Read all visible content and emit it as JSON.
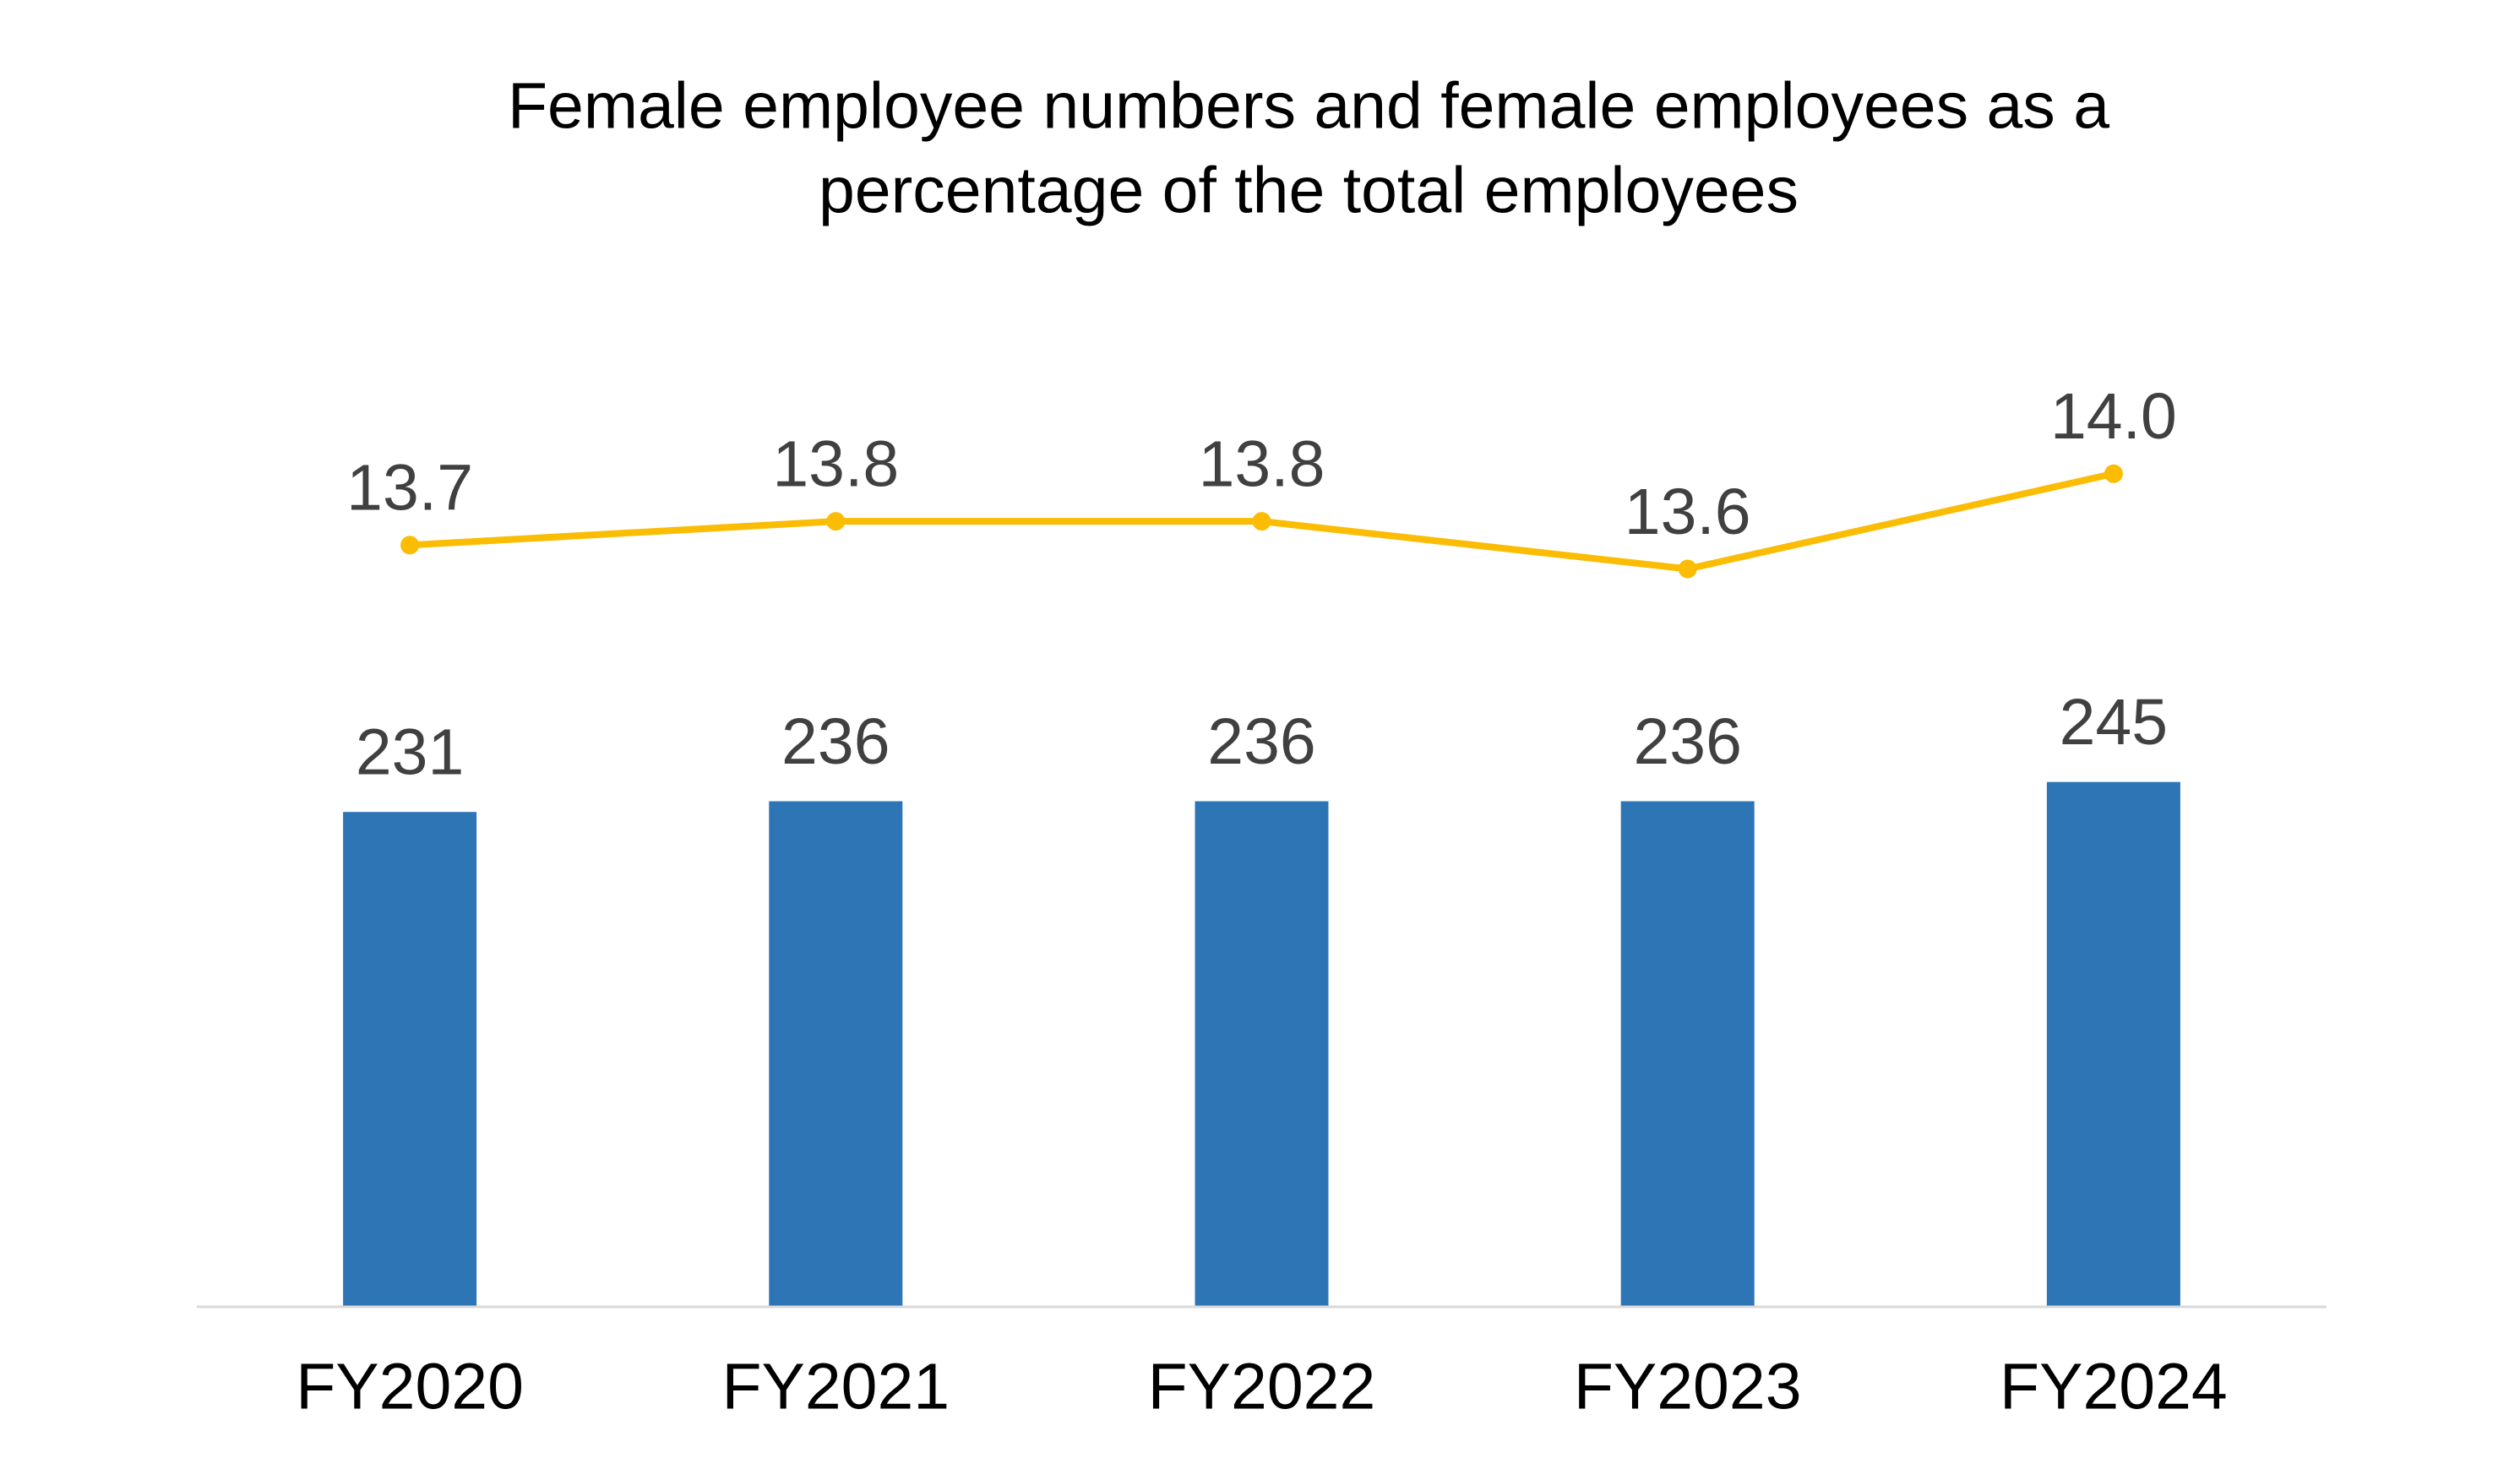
{
  "chart_data": {
    "type": "combo",
    "title": [
      "Female employee numbers and female employees as a",
      "percentage of the total employees"
    ],
    "categories": [
      "FY2020",
      "FY2021",
      "FY2022",
      "FY2023",
      "FY2024"
    ],
    "series": [
      {
        "type": "bar",
        "color": "#2e75b6",
        "values": [
          231,
          236,
          236,
          236,
          245
        ]
      },
      {
        "type": "line",
        "axis": "y2",
        "color": "#fbbc04",
        "values": [
          13.7,
          13.8,
          13.8,
          13.6,
          14.0
        ],
        "value_labels": [
          "13.7",
          "13.8",
          "13.8",
          "13.6",
          "14.0"
        ]
      }
    ],
    "ylim": [
      0,
      500
    ],
    "y2lim": [
      10.5,
      15
    ],
    "grid": false
  }
}
